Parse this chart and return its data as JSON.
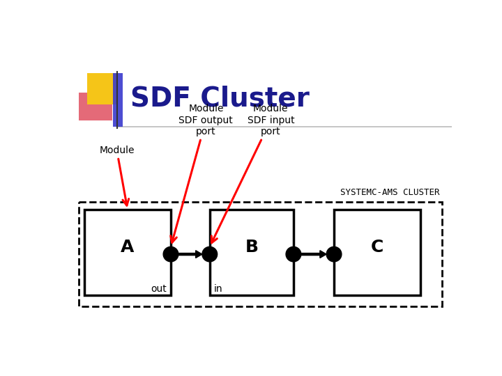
{
  "title": "SDF Cluster",
  "title_color": "#1a1a8c",
  "title_fontsize": 28,
  "bg_color": "#ffffff",
  "accent_yellow": "#f5c518",
  "accent_red": "#e05060",
  "accent_blue": "#3a3acd",
  "label_module": "Module",
  "label_sdf_out": "Module\nSDF output\nport",
  "label_sdf_in": "Module\nSDF input\nport",
  "label_cluster": "SYSTEMC-AMS CLUSTER",
  "port_label_out": "out",
  "port_label_in": "in",
  "module_labels": [
    "A",
    "B",
    "C"
  ]
}
